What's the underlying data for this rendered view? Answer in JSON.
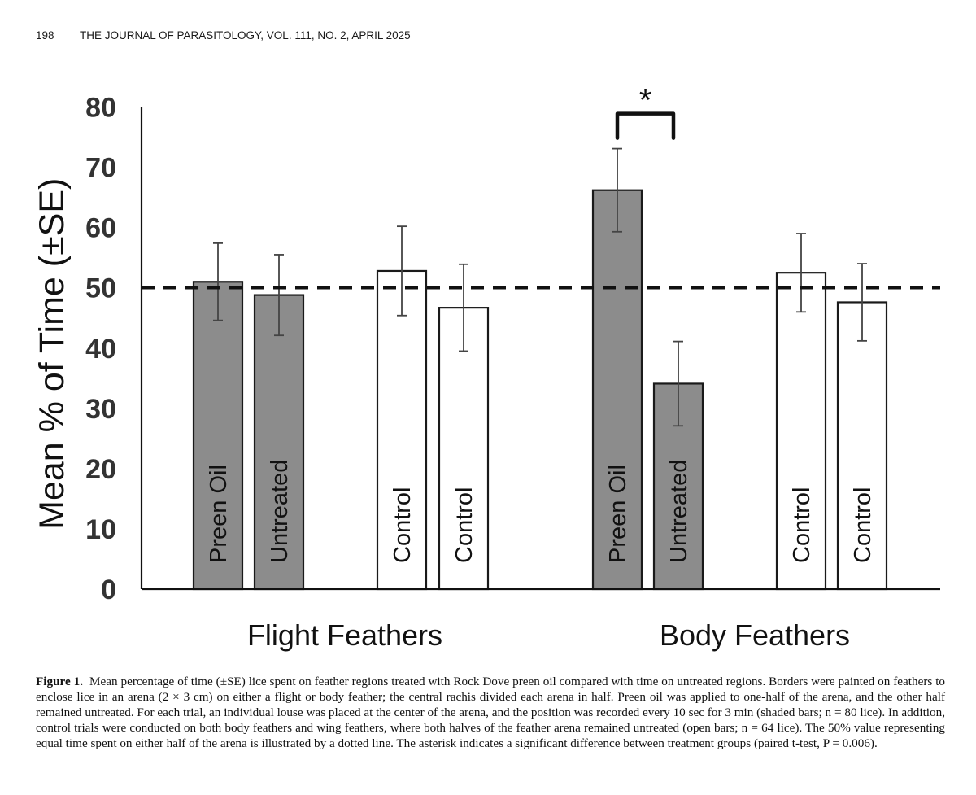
{
  "header": {
    "page_number": "198",
    "journal": "THE JOURNAL OF PARASITOLOGY, VOL. 111, NO. 2, APRIL 2025"
  },
  "chart_data": {
    "type": "bar",
    "ylabel": "Mean % of Time (±SE)",
    "ylim": [
      0,
      80
    ],
    "yticks": [
      0,
      10,
      20,
      30,
      40,
      50,
      60,
      70,
      80
    ],
    "groups": [
      {
        "label": "Flight Feathers",
        "bars": [
          {
            "label": "Preen Oil",
            "value": 51.0,
            "error": 6.4,
            "fill": "shaded"
          },
          {
            "label": "Untreated",
            "value": 48.8,
            "error": 6.7,
            "fill": "shaded"
          },
          {
            "label": "Control",
            "value": 52.8,
            "error": 7.4,
            "fill": "open"
          },
          {
            "label": "Control",
            "value": 46.7,
            "error": 7.2,
            "fill": "open"
          }
        ]
      },
      {
        "label": "Body Feathers",
        "bars": [
          {
            "label": "Preen Oil",
            "value": 66.2,
            "error": 6.9,
            "fill": "shaded"
          },
          {
            "label": "Untreated",
            "value": 34.1,
            "error": 7.0,
            "fill": "shaded"
          },
          {
            "label": "Control",
            "value": 52.5,
            "error": 6.5,
            "fill": "open"
          },
          {
            "label": "Control",
            "value": 47.6,
            "error": 6.4,
            "fill": "open"
          }
        ]
      }
    ],
    "reference_line": {
      "value": 50,
      "style": "dashed"
    },
    "significance": {
      "symbol": "*",
      "group": "Body Feathers",
      "between": [
        "Preen Oil",
        "Untreated"
      ]
    },
    "colors": {
      "shaded": "#8c8c8c",
      "open": "#ffffff",
      "stroke": "#1a1a1a",
      "axis_text": "#333333"
    }
  },
  "caption": {
    "label": "Figure 1.",
    "text": "Mean percentage of time (±SE) lice spent on feather regions treated with Rock Dove preen oil compared with time on untreated regions. Borders were painted on feathers to enclose lice in an arena (2 × 3 cm) on either a flight or body feather; the central rachis divided each arena in half. Preen oil was applied to one-half of the arena, and the other half remained untreated. For each trial, an individual louse was placed at the center of the arena, and the position was recorded every 10 sec for 3 min (shaded bars; n = 80 lice). In addition, control trials were conducted on both body feathers and wing feathers, where both halves of the feather arena remained untreated (open bars; n = 64 lice). The 50% value representing equal time spent on either half of the arena is illustrated by a dotted line. The asterisk indicates a significant difference between treatment groups (paired t-test, P = 0.006)."
  }
}
